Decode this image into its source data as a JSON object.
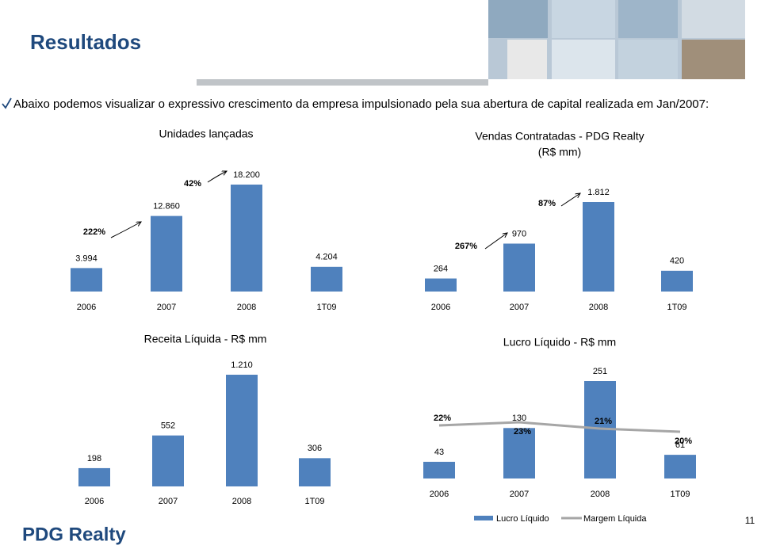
{
  "header": {
    "title": "Resultados",
    "intro": "Abaixo podemos visualizar o expressivo crescimento da empresa impulsionado pela sua abertura de capital realizada em Jan/2007:"
  },
  "logo": {
    "text": "PDG Realty"
  },
  "footer": {
    "page": "11"
  },
  "chart_data": [
    {
      "type": "bar",
      "title": "Unidades lançadas",
      "categories": [
        "2006",
        "2007",
        "2008",
        "1T09"
      ],
      "values": [
        3994,
        12860,
        18200,
        4204
      ],
      "value_labels": [
        "3.994",
        "12.860",
        "18.200",
        "4.204"
      ],
      "color": "#4f81bd",
      "annotations": [
        "222%",
        "42%"
      ]
    },
    {
      "type": "bar",
      "title": "Vendas  Contratadas - PDG Realty",
      "subtitle": "(R$ mm)",
      "categories": [
        "2006",
        "2007",
        "2008",
        "1T09"
      ],
      "values": [
        264,
        970,
        1812,
        420
      ],
      "value_labels": [
        "264",
        "970",
        "1.812",
        "420"
      ],
      "color": "#4f81bd",
      "annotations": [
        "267%",
        "87%"
      ]
    },
    {
      "type": "bar",
      "title": "Receita Líquida  - R$ mm",
      "categories": [
        "2006",
        "2007",
        "2008",
        "1T09"
      ],
      "values": [
        198,
        552,
        1210,
        306
      ],
      "value_labels": [
        "198",
        "552",
        "1.210",
        "306"
      ],
      "color": "#4f81bd"
    },
    {
      "type": "combo",
      "title": "Lucro Líquido - R$ mm",
      "categories": [
        "2006",
        "2007",
        "2008",
        "1T09"
      ],
      "series": [
        {
          "name": "Lucro Líquido",
          "type": "bar",
          "color": "#4f81bd",
          "values": [
            43,
            130,
            251,
            61
          ]
        },
        {
          "name": "Margem Líquida",
          "type": "line",
          "axis": "y2",
          "color": "#a6a6a6",
          "values": [
            22,
            23,
            21,
            20
          ],
          "value_labels": [
            "22%",
            "23%",
            "21%",
            "20%"
          ]
        }
      ]
    }
  ]
}
